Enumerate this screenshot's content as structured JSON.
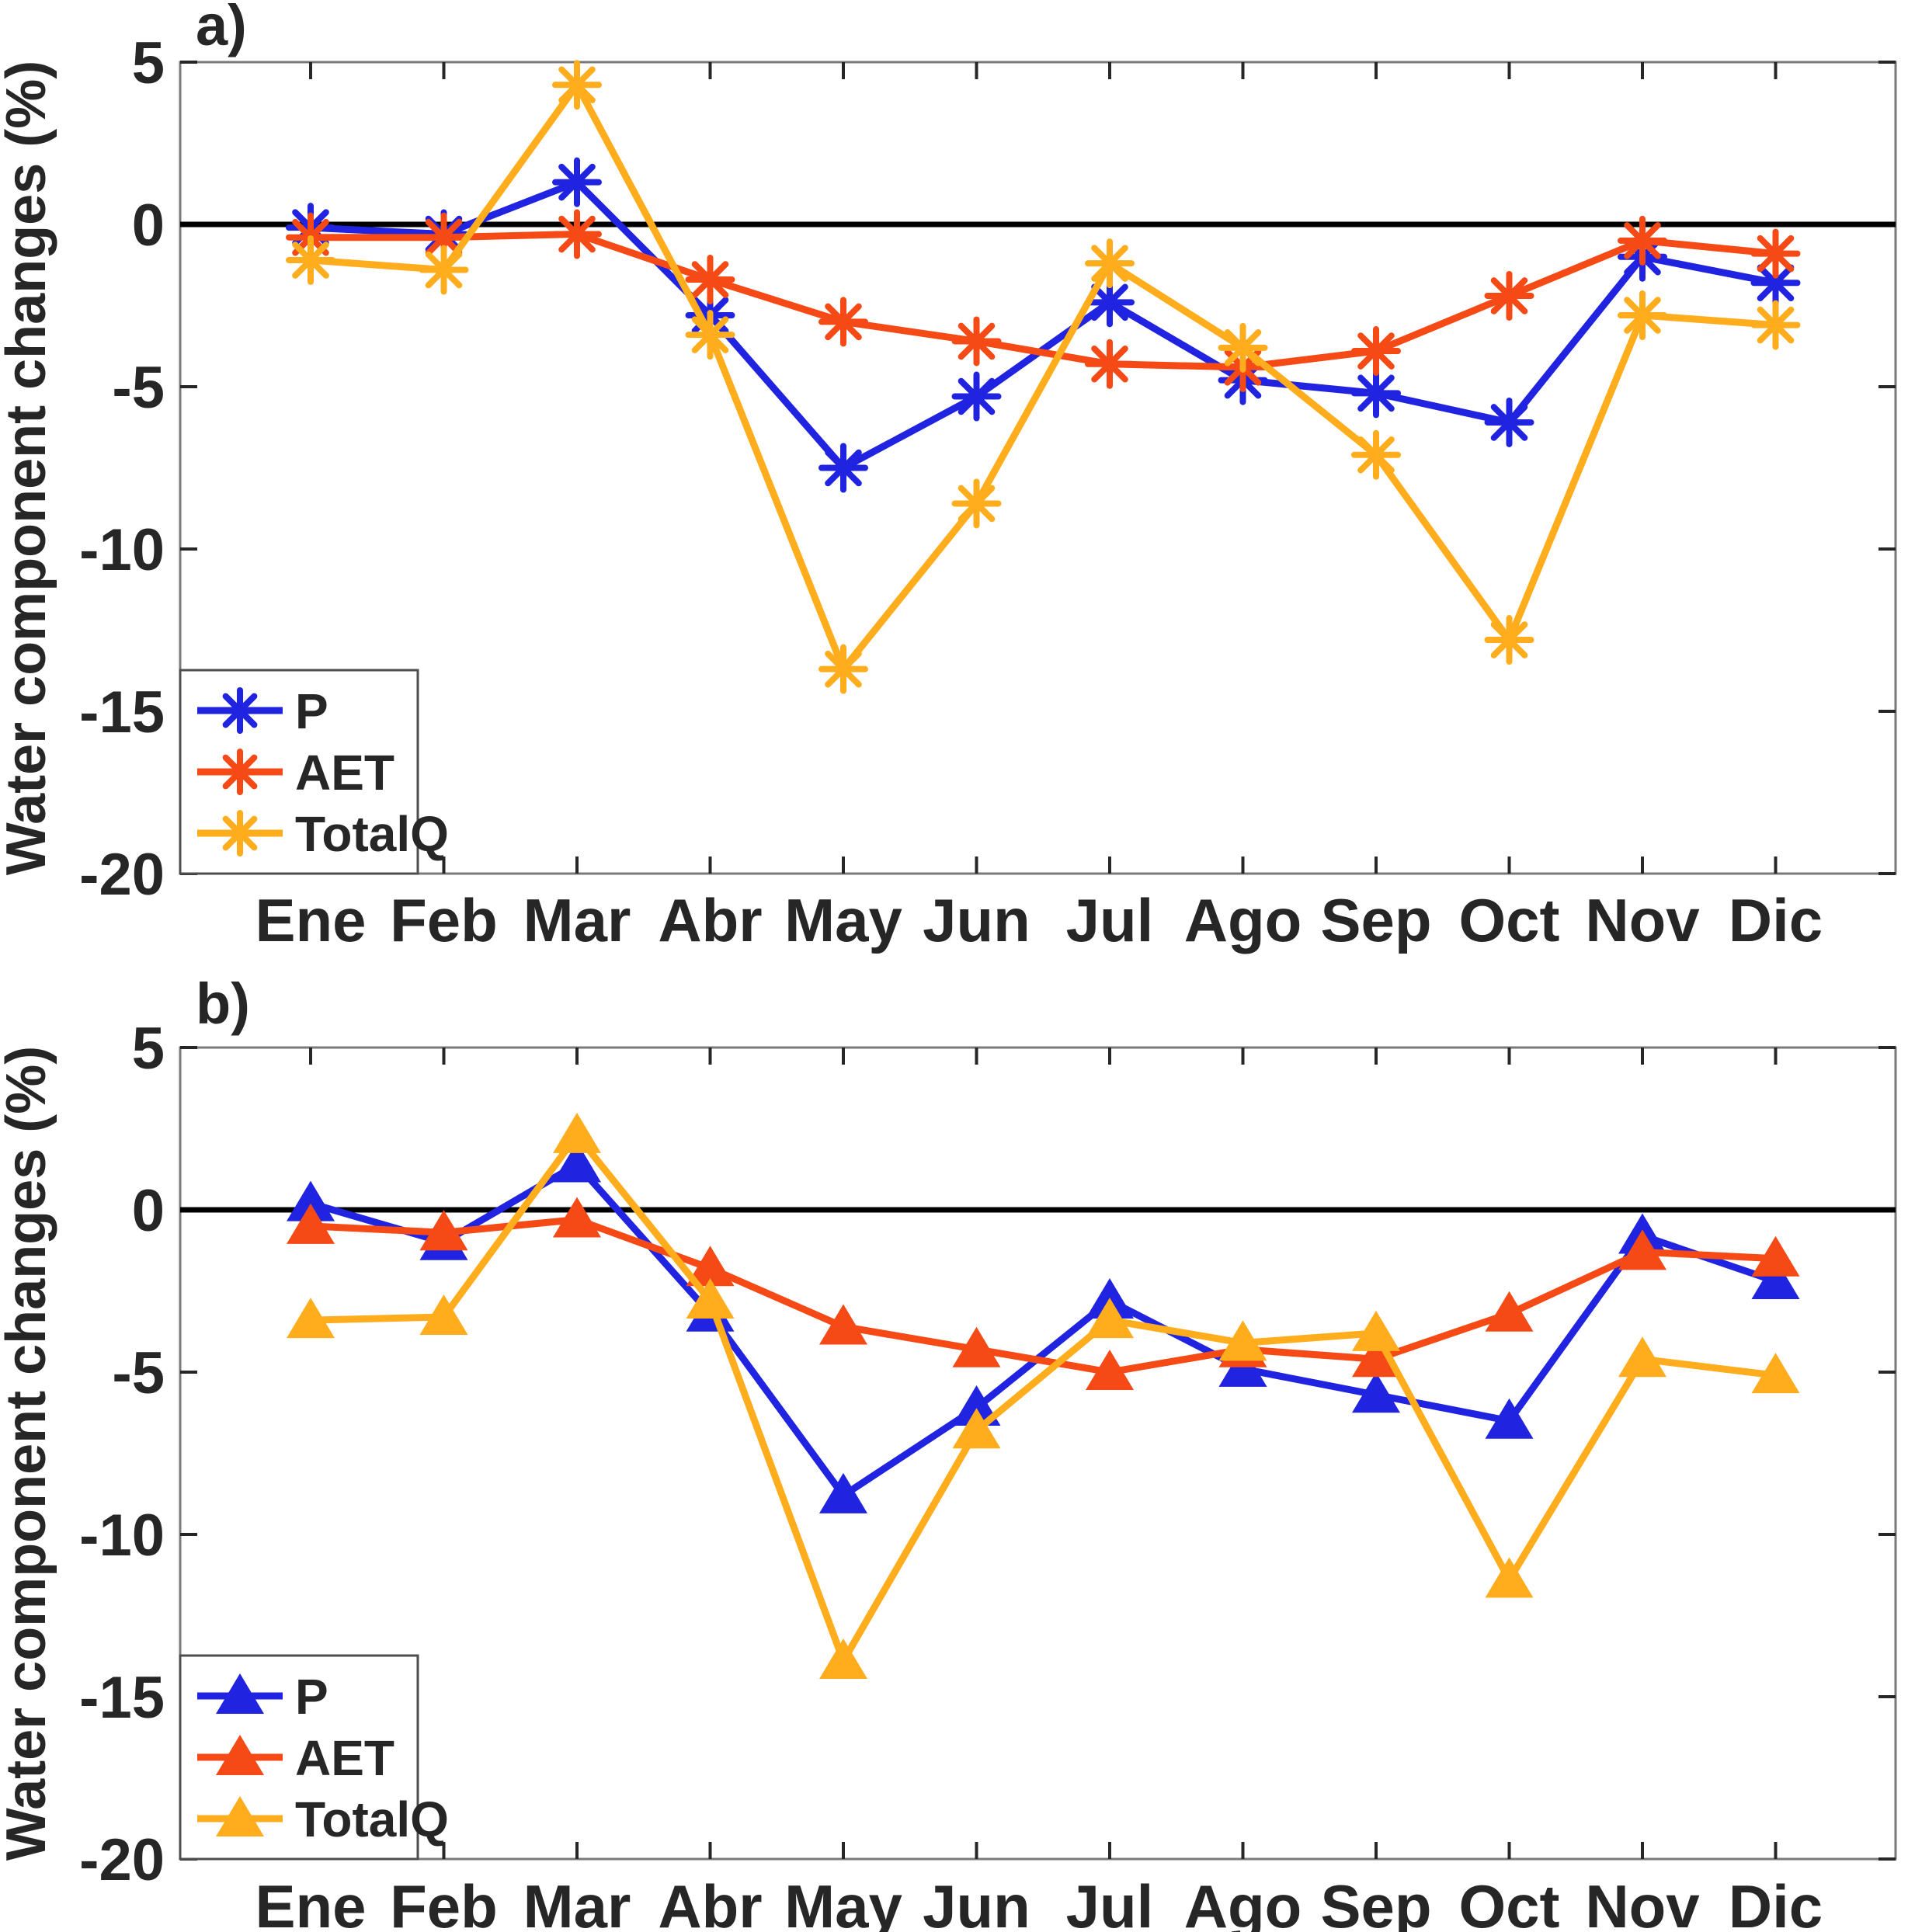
{
  "figure": {
    "background": "#ffffff",
    "axis_box_color": "#7a7a7a",
    "tick_color": "#262626",
    "label_color": "#262626",
    "zero_line_color": "#000000"
  },
  "months": [
    "Ene",
    "Feb",
    "Mar",
    "Abr",
    "May",
    "Jun",
    "Jul",
    "Ago",
    "Sep",
    "Oct",
    "Nov",
    "Dic"
  ],
  "y_axis": {
    "label": "Water component changes (%)",
    "ticks": [
      5,
      0,
      -5,
      -10,
      -15,
      -20
    ],
    "min": -20,
    "max": 5
  },
  "legend": {
    "items": [
      "P",
      "AET",
      "TotalQ"
    ],
    "position": "bottom-left"
  },
  "colors": {
    "P": "#2023E0",
    "AET": "#F64A16",
    "TotalQ": "#FFAD1C"
  },
  "chart_data": [
    {
      "type": "line",
      "panel_label": "a)",
      "marker": "asterisk",
      "title": "",
      "xlabel": "",
      "ylabel": "Water component changes (%)",
      "ylim": [
        -20,
        5
      ],
      "yticks": [
        5,
        0,
        -5,
        -10,
        -15,
        -20
      ],
      "grid": false,
      "zero_line": true,
      "legend_position": "bottom-left",
      "categories": [
        "Ene",
        "Feb",
        "Mar",
        "Abr",
        "May",
        "Jun",
        "Jul",
        "Ago",
        "Sep",
        "Oct",
        "Nov",
        "Dic"
      ],
      "series": [
        {
          "name": "P",
          "color": "#2023E0",
          "values": [
            -0.1,
            -0.3,
            1.3,
            -2.8,
            -7.5,
            -5.3,
            -2.4,
            -4.8,
            -5.2,
            -6.1,
            -1.0,
            -1.8
          ]
        },
        {
          "name": "AET",
          "color": "#F64A16",
          "values": [
            -0.4,
            -0.4,
            -0.3,
            -1.7,
            -3.0,
            -3.6,
            -4.3,
            -4.4,
            -3.9,
            -2.2,
            -0.5,
            -0.9
          ]
        },
        {
          "name": "TotalQ",
          "color": "#FFAD1C",
          "values": [
            -1.1,
            -1.4,
            4.3,
            -3.4,
            -13.7,
            -8.6,
            -1.2,
            -3.8,
            -7.1,
            -12.8,
            -2.8,
            -3.1
          ]
        }
      ]
    },
    {
      "type": "line",
      "panel_label": "b)",
      "marker": "triangle",
      "title": "",
      "xlabel": "",
      "ylabel": "Water component changes (%)",
      "ylim": [
        -20,
        5
      ],
      "yticks": [
        5,
        0,
        -5,
        -10,
        -15,
        -20
      ],
      "grid": false,
      "zero_line": true,
      "legend_position": "bottom-left",
      "categories": [
        "Ene",
        "Feb",
        "Mar",
        "Abr",
        "May",
        "Jun",
        "Jul",
        "Ago",
        "Sep",
        "Oct",
        "Nov",
        "Dic"
      ],
      "series": [
        {
          "name": "P",
          "color": "#2023E0",
          "values": [
            0.2,
            -1.0,
            1.4,
            -3.2,
            -8.8,
            -6.1,
            -2.8,
            -4.9,
            -5.7,
            -6.5,
            -0.8,
            -2.2
          ]
        },
        {
          "name": "AET",
          "color": "#F64A16",
          "values": [
            -0.5,
            -0.7,
            -0.3,
            -1.8,
            -3.6,
            -4.3,
            -5.0,
            -4.3,
            -4.6,
            -3.2,
            -1.3,
            -1.5
          ]
        },
        {
          "name": "TotalQ",
          "color": "#FFAD1C",
          "values": [
            -3.4,
            -3.3,
            2.3,
            -2.8,
            -13.9,
            -6.8,
            -3.4,
            -4.1,
            -3.8,
            -11.4,
            -4.6,
            -5.1
          ]
        }
      ]
    }
  ]
}
